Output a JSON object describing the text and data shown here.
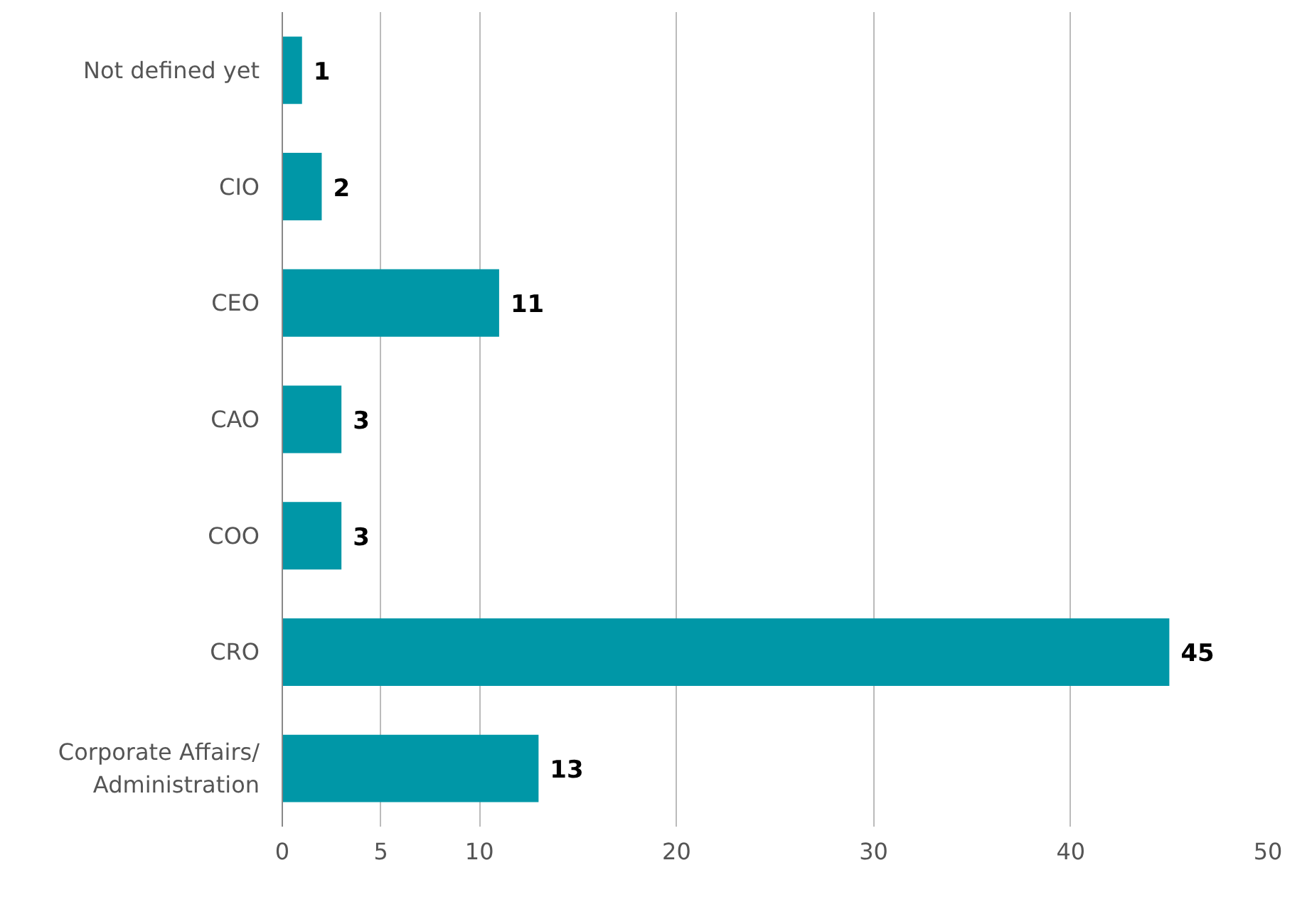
{
  "chart_data": {
    "type": "bar",
    "orientation": "horizontal",
    "categories": [
      "Not defined yet",
      "CIO",
      "CEO",
      "CAO",
      "COO",
      "CRO",
      "Corporate Affairs/\nAdministration"
    ],
    "values": [
      1,
      2,
      11,
      3,
      3,
      45,
      13
    ],
    "color": "#0097a7",
    "xlim": [
      0,
      50
    ],
    "xticks": [
      0,
      5,
      10,
      20,
      30,
      40,
      50
    ],
    "grid": "x",
    "data_labels": true
  }
}
